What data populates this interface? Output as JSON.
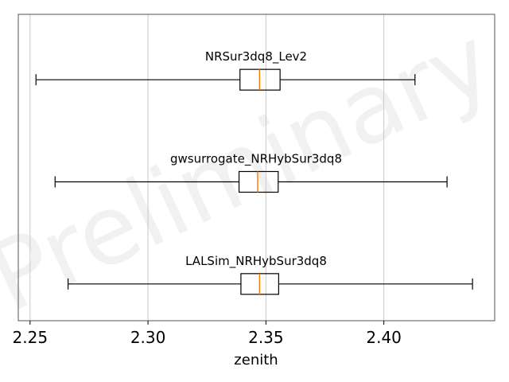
{
  "chart_data": {
    "type": "boxplot",
    "orientation": "horizontal",
    "xlabel": "zenith",
    "xlim": [
      2.245,
      2.447
    ],
    "xticks": [
      2.25,
      2.3,
      2.35,
      2.4
    ],
    "xtick_labels": [
      "2.25",
      "2.30",
      "2.35",
      "2.40"
    ],
    "grid": "vertical",
    "watermark": "Preliminary",
    "colors": {
      "box": "#000000",
      "median": "#ff7f0e",
      "grid": "#c8c8c8"
    },
    "series": [
      {
        "name": "NRSur3dq8_Lev2",
        "whisker_low": 2.2525,
        "q1": 2.339,
        "median": 2.3473,
        "q3": 2.356,
        "whisker_high": 2.4132
      },
      {
        "name": "gwsurrogate_NRHybSur3dq8",
        "whisker_low": 2.2606,
        "q1": 2.3386,
        "median": 2.3465,
        "q3": 2.3552,
        "whisker_high": 2.4268
      },
      {
        "name": "LALSim_NRHybSur3dq8",
        "whisker_low": 2.2661,
        "q1": 2.3394,
        "median": 2.3473,
        "q3": 2.3554,
        "whisker_high": 2.4376
      }
    ]
  }
}
